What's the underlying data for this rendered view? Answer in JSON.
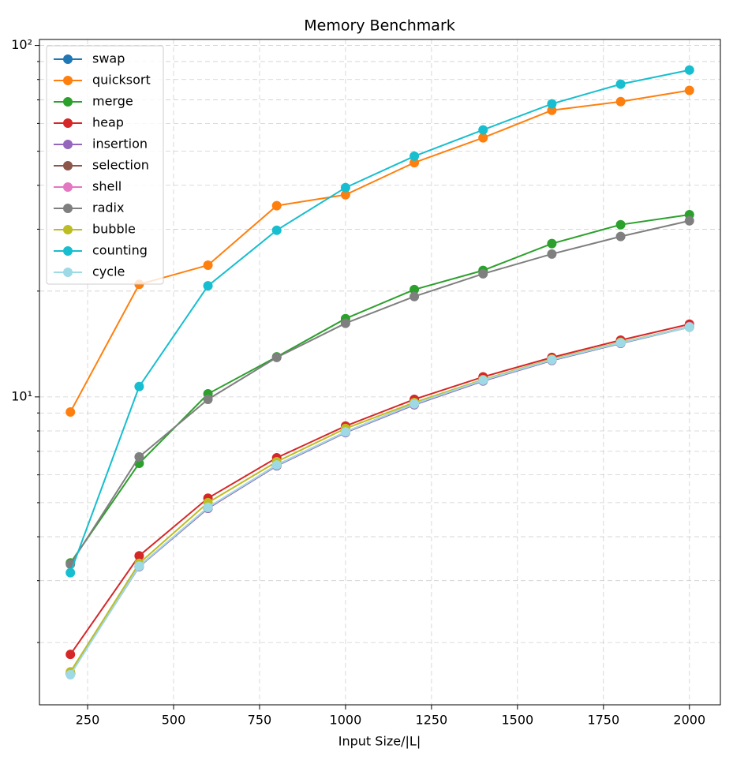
{
  "chart_data": {
    "type": "line",
    "title": "Memory Benchmark",
    "x_label": "Input Size/|L|",
    "x": [
      200,
      400,
      600,
      800,
      1000,
      1200,
      1400,
      1600,
      1800,
      2000
    ],
    "xlim": [
      110,
      2090
    ],
    "xticks": [
      250,
      500,
      750,
      1000,
      1250,
      1500,
      1750,
      2000
    ],
    "ylim": [
      1.33,
      104
    ],
    "y_scale": "log",
    "yticks": [
      {
        "value": 10,
        "label": "10¹"
      },
      {
        "value": 100,
        "label": "10²"
      }
    ],
    "yminorticks": [
      2,
      3,
      4,
      5,
      6,
      7,
      8,
      9,
      20,
      30,
      40,
      50,
      60,
      70,
      80,
      90
    ],
    "grid": true,
    "legend": "upper left",
    "series": [
      {
        "name": "swap",
        "color": "#1f77b4",
        "values": [
          1.63,
          3.29,
          4.82,
          6.37,
          7.92,
          9.5,
          11.1,
          12.7,
          14.2,
          15.8
        ]
      },
      {
        "name": "quicksort",
        "color": "#ff7f0e",
        "values": [
          9.06,
          20.9,
          23.7,
          35.0,
          37.6,
          46.4,
          54.6,
          65.4,
          69.2,
          74.5
        ]
      },
      {
        "name": "merge",
        "color": "#2ca02c",
        "values": [
          3.37,
          6.47,
          10.2,
          13.0,
          16.7,
          20.2,
          22.9,
          27.3,
          30.9,
          33.0
        ]
      },
      {
        "name": "heap",
        "color": "#d62728",
        "values": [
          1.85,
          3.53,
          5.15,
          6.71,
          8.26,
          9.84,
          11.4,
          12.95,
          14.5,
          16.1
        ]
      },
      {
        "name": "insertion",
        "color": "#9467bd",
        "values": [
          1.63,
          3.29,
          4.82,
          6.37,
          7.92,
          9.5,
          11.1,
          12.7,
          14.2,
          15.8
        ]
      },
      {
        "name": "selection",
        "color": "#8c564b",
        "values": [
          1.63,
          3.3,
          4.84,
          6.4,
          7.95,
          9.55,
          11.15,
          12.75,
          14.25,
          15.85
        ]
      },
      {
        "name": "shell",
        "color": "#e377c2",
        "values": [
          1.63,
          3.3,
          4.84,
          6.4,
          7.95,
          9.55,
          11.15,
          12.75,
          14.25,
          15.85
        ]
      },
      {
        "name": "radix",
        "color": "#7f7f7f",
        "values": [
          3.34,
          6.75,
          9.84,
          12.95,
          16.2,
          19.3,
          22.4,
          25.5,
          28.6,
          31.7
        ]
      },
      {
        "name": "bubble",
        "color": "#bcbd22",
        "values": [
          1.65,
          3.36,
          5.0,
          6.54,
          8.13,
          9.64,
          11.2,
          12.8,
          14.3,
          15.8
        ]
      },
      {
        "name": "counting",
        "color": "#17becf",
        "values": [
          3.16,
          10.7,
          20.7,
          29.8,
          39.4,
          48.4,
          57.5,
          68.2,
          77.6,
          85.1
        ]
      },
      {
        "name": "cycle",
        "color": "#9edae5",
        "values": [
          1.62,
          3.3,
          4.85,
          6.4,
          7.95,
          9.55,
          11.15,
          12.75,
          14.25,
          15.8
        ]
      }
    ]
  }
}
